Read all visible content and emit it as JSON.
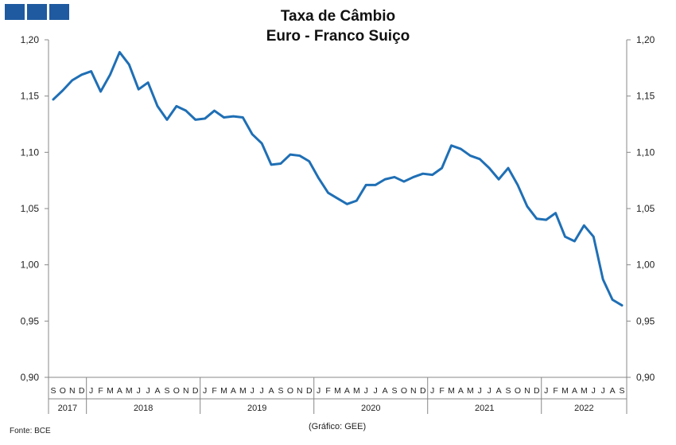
{
  "header": {
    "title_line1": "Taxa de Câmbio",
    "title_line2": "Euro - Franco Suiço"
  },
  "footer": {
    "source": "Fonte: BCE",
    "credit": "(Gráfico: GEE)"
  },
  "colors": {
    "series": "#1f6fb5",
    "axis": "#888888",
    "logo": "#1f5aa0"
  },
  "chart_data": {
    "type": "line",
    "title": "Taxa de Câmbio Euro - Franco Suiço",
    "ylim": [
      0.9,
      1.2
    ],
    "yticks": [
      "0,90",
      "0,95",
      "1,00",
      "1,05",
      "1,10",
      "1,15",
      "1,20"
    ],
    "ytick_values": [
      0.9,
      0.95,
      1.0,
      1.05,
      1.1,
      1.15,
      1.2
    ],
    "grid": false,
    "dual_y_axis": true,
    "month_labels": [
      "S",
      "O",
      "N",
      "D",
      "J",
      "F",
      "M",
      "A",
      "M",
      "J",
      "J",
      "A",
      "S",
      "O",
      "N",
      "D",
      "J",
      "F",
      "M",
      "A",
      "M",
      "J",
      "J",
      "A",
      "S",
      "O",
      "N",
      "D",
      "J",
      "F",
      "M",
      "A",
      "M",
      "J",
      "J",
      "A",
      "S",
      "O",
      "N",
      "D",
      "J",
      "F",
      "M",
      "A",
      "M",
      "J",
      "J",
      "A",
      "S",
      "O",
      "N",
      "D",
      "J",
      "F",
      "M",
      "A",
      "M",
      "J",
      "J",
      "A",
      "S"
    ],
    "years": [
      {
        "label": "2017",
        "months": 4
      },
      {
        "label": "2018",
        "months": 12
      },
      {
        "label": "2019",
        "months": 12
      },
      {
        "label": "2020",
        "months": 12
      },
      {
        "label": "2021",
        "months": 12
      },
      {
        "label": "2022",
        "months": 9
      }
    ],
    "series": [
      {
        "values": [
          1.147,
          1.155,
          1.164,
          1.169,
          1.172,
          1.154,
          1.169,
          1.189,
          1.178,
          1.156,
          1.162,
          1.141,
          1.129,
          1.141,
          1.137,
          1.129,
          1.13,
          1.137,
          1.131,
          1.132,
          1.131,
          1.116,
          1.108,
          1.089,
          1.09,
          1.098,
          1.097,
          1.092,
          1.077,
          1.064,
          1.059,
          1.054,
          1.057,
          1.071,
          1.071,
          1.076,
          1.078,
          1.074,
          1.078,
          1.081,
          1.08,
          1.086,
          1.106,
          1.103,
          1.097,
          1.094,
          1.086,
          1.076,
          1.086,
          1.071,
          1.052,
          1.041,
          1.04,
          1.046,
          1.025,
          1.021,
          1.035,
          1.025,
          0.987,
          0.969,
          0.964
        ]
      }
    ]
  }
}
